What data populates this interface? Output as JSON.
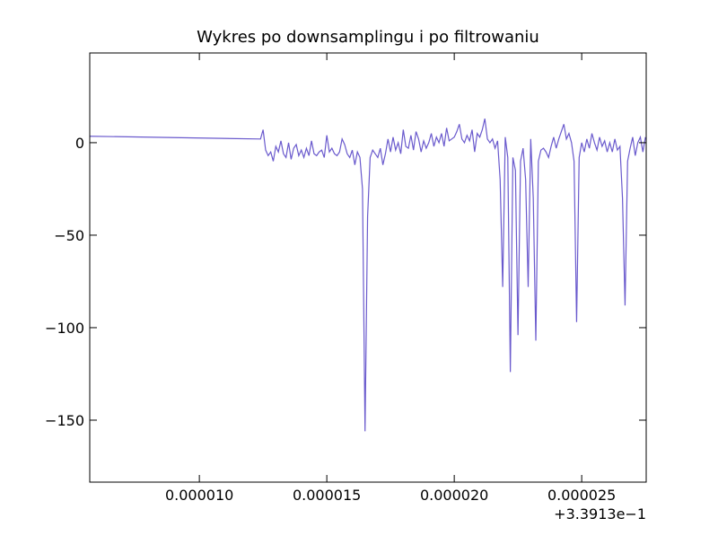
{
  "chart_data": {
    "type": "line",
    "title": "Wykres po downsamplingu i po filtrowaniu",
    "x_offset_label": "+3.3913e−1",
    "color": "#6a5acd",
    "x": [
      5.7e-06,
      1.24e-05,
      1.25e-05,
      1.26e-05,
      1.27e-05,
      1.28e-05,
      1.29e-05,
      1.3e-05,
      1.31e-05,
      1.32e-05,
      1.33e-05,
      1.34e-05,
      1.35e-05,
      1.36e-05,
      1.37e-05,
      1.38e-05,
      1.39e-05,
      1.4e-05,
      1.41e-05,
      1.42e-05,
      1.43e-05,
      1.44e-05,
      1.45e-05,
      1.46e-05,
      1.47e-05,
      1.48e-05,
      1.49e-05,
      1.5e-05,
      1.51e-05,
      1.52e-05,
      1.53e-05,
      1.54e-05,
      1.55e-05,
      1.56e-05,
      1.57e-05,
      1.58e-05,
      1.59e-05,
      1.6e-05,
      1.61e-05,
      1.62e-05,
      1.63e-05,
      1.64e-05,
      1.65e-05,
      1.66e-05,
      1.67e-05,
      1.68e-05,
      1.69e-05,
      1.7e-05,
      1.71e-05,
      1.72e-05,
      1.73e-05,
      1.74e-05,
      1.75e-05,
      1.76e-05,
      1.77e-05,
      1.78e-05,
      1.79e-05,
      1.8e-05,
      1.81e-05,
      1.82e-05,
      1.83e-05,
      1.84e-05,
      1.85e-05,
      1.86e-05,
      1.87e-05,
      1.88e-05,
      1.89e-05,
      1.9e-05,
      1.91e-05,
      1.92e-05,
      1.93e-05,
      1.94e-05,
      1.95e-05,
      1.96e-05,
      1.97e-05,
      1.98e-05,
      1.99e-05,
      2e-05,
      2.01e-05,
      2.02e-05,
      2.03e-05,
      2.04e-05,
      2.05e-05,
      2.06e-05,
      2.07e-05,
      2.08e-05,
      2.09e-05,
      2.1e-05,
      2.11e-05,
      2.12e-05,
      2.13e-05,
      2.14e-05,
      2.15e-05,
      2.16e-05,
      2.17e-05,
      2.18e-05,
      2.19e-05,
      2.2e-05,
      2.21e-05,
      2.22e-05,
      2.23e-05,
      2.24e-05,
      2.25e-05,
      2.26e-05,
      2.27e-05,
      2.28e-05,
      2.29e-05,
      2.3e-05,
      2.31e-05,
      2.32e-05,
      2.33e-05,
      2.34e-05,
      2.35e-05,
      2.36e-05,
      2.37e-05,
      2.38e-05,
      2.39e-05,
      2.4e-05,
      2.41e-05,
      2.42e-05,
      2.43e-05,
      2.44e-05,
      2.45e-05,
      2.46e-05,
      2.47e-05,
      2.48e-05,
      2.49e-05,
      2.5e-05,
      2.51e-05,
      2.52e-05,
      2.53e-05,
      2.54e-05,
      2.55e-05,
      2.56e-05,
      2.57e-05,
      2.58e-05,
      2.59e-05,
      2.6e-05,
      2.61e-05,
      2.62e-05,
      2.63e-05,
      2.64e-05,
      2.65e-05,
      2.66e-05,
      2.67e-05,
      2.68e-05,
      2.69e-05,
      2.7e-05,
      2.71e-05,
      2.72e-05,
      2.73e-05,
      2.74e-05,
      2.75e-05
    ],
    "values": [
      3.5,
      2,
      7,
      -4,
      -7,
      -5,
      -10,
      -2,
      -5,
      1,
      -6,
      -8,
      0,
      -9,
      -3,
      -1,
      -7,
      -4,
      -8,
      -3,
      -7,
      1,
      -6,
      -7,
      -5,
      -4,
      -8,
      4,
      -5,
      -3,
      -6,
      -7,
      -5,
      2,
      -1,
      -6,
      -8,
      -4,
      -12,
      -5,
      -8,
      -25,
      -156,
      -40,
      -8,
      -4,
      -6,
      -8,
      -3,
      -12,
      -6,
      2,
      -5,
      3,
      -4,
      0,
      -6,
      7,
      -2,
      -3,
      4,
      -4,
      6,
      2,
      -5,
      1,
      -3,
      0,
      5,
      -2,
      3,
      0,
      5,
      -2,
      8,
      1,
      2,
      3,
      6,
      10,
      2,
      0,
      4,
      1,
      7,
      -5,
      5,
      3,
      7,
      13,
      2,
      0,
      2,
      -3,
      1,
      -20,
      -78,
      3,
      -8,
      -124,
      -8,
      -15,
      -104,
      -10,
      -3,
      -20,
      -78,
      2,
      -30,
      -107,
      -10,
      -4,
      -3,
      -5,
      -8,
      -2,
      3,
      -3,
      2,
      6,
      10,
      2,
      5,
      0,
      -10,
      -97,
      -8,
      0,
      -5,
      2,
      -3,
      5,
      0,
      -4,
      3,
      -2,
      1,
      -5,
      0,
      -5,
      2,
      -4,
      -2,
      -30,
      -88,
      -10,
      -3,
      3,
      -7,
      0,
      3,
      -5,
      3
    ],
    "xlim": [
      5.7e-06,
      2.753e-05
    ],
    "ylim": [
      -183.5,
      48.5
    ],
    "xticks": [
      {
        "value": 1e-05,
        "label": "0.000010"
      },
      {
        "value": 1.5e-05,
        "label": "0.000015"
      },
      {
        "value": 2e-05,
        "label": "0.000020"
      },
      {
        "value": 2.5e-05,
        "label": "0.000025"
      }
    ],
    "yticks": [
      0,
      {
        "value": -50,
        "label": "−50"
      },
      {
        "value": -100,
        "label": "−100"
      },
      {
        "value": -150,
        "label": "−150"
      }
    ],
    "grid": false
  }
}
